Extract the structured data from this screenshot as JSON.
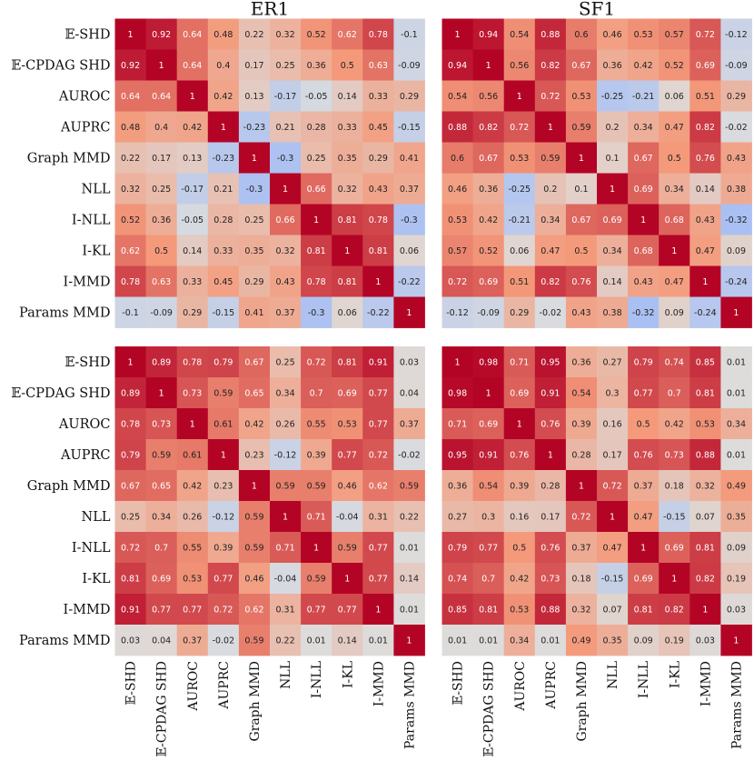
{
  "chart_data": {
    "type": "heatmap",
    "colormap": "coolwarm",
    "vmin": -1,
    "vmax": 1,
    "column_titles": [
      "ER1",
      "SF1"
    ],
    "labels": [
      "𝔼-SHD",
      "𝔼-CPDAG SHD",
      "AUROC",
      "AUPRC",
      "Graph MMD",
      "NLL",
      "I-NLL",
      "I-KL",
      "I-MMD",
      "Params MMD"
    ],
    "panels": [
      {
        "title": "ER1",
        "row": 0,
        "col": 0,
        "matrix": [
          [
            "1",
            "0.92",
            "0.64",
            "0.48",
            "0.22",
            "0.32",
            "0.52",
            "0.62",
            "0.78",
            "-0.1"
          ],
          [
            "0.92",
            "1",
            "0.64",
            "0.4",
            "0.17",
            "0.25",
            "0.36",
            "0.5",
            "0.63",
            "-0.09"
          ],
          [
            "0.64",
            "0.64",
            "1",
            "0.42",
            "0.13",
            "-0.17",
            "-0.05",
            "0.14",
            "0.33",
            "0.29"
          ],
          [
            "0.48",
            "0.4",
            "0.42",
            "1",
            "-0.23",
            "0.21",
            "0.28",
            "0.33",
            "0.45",
            "-0.15"
          ],
          [
            "0.22",
            "0.17",
            "0.13",
            "-0.23",
            "1",
            "-0.3",
            "0.25",
            "0.35",
            "0.29",
            "0.41"
          ],
          [
            "0.32",
            "0.25",
            "-0.17",
            "0.21",
            "-0.3",
            "1",
            "0.66",
            "0.32",
            "0.43",
            "0.37"
          ],
          [
            "0.52",
            "0.36",
            "-0.05",
            "0.28",
            "0.25",
            "0.66",
            "1",
            "0.81",
            "0.78",
            "-0.3"
          ],
          [
            "0.62",
            "0.5",
            "0.14",
            "0.33",
            "0.35",
            "0.32",
            "0.81",
            "1",
            "0.81",
            "0.06"
          ],
          [
            "0.78",
            "0.63",
            "0.33",
            "0.45",
            "0.29",
            "0.43",
            "0.78",
            "0.81",
            "1",
            "-0.22"
          ],
          [
            "-0.1",
            "-0.09",
            "0.29",
            "-0.15",
            "0.41",
            "0.37",
            "-0.3",
            "0.06",
            "-0.22",
            "1"
          ]
        ]
      },
      {
        "title": "SF1",
        "row": 0,
        "col": 1,
        "matrix": [
          [
            "1",
            "0.94",
            "0.54",
            "0.88",
            "0.6",
            "0.46",
            "0.53",
            "0.57",
            "0.72",
            "-0.12"
          ],
          [
            "0.94",
            "1",
            "0.56",
            "0.82",
            "0.67",
            "0.36",
            "0.42",
            "0.52",
            "0.69",
            "-0.09"
          ],
          [
            "0.54",
            "0.56",
            "1",
            "0.72",
            "0.53",
            "-0.25",
            "-0.21",
            "0.06",
            "0.51",
            "0.29"
          ],
          [
            "0.88",
            "0.82",
            "0.72",
            "1",
            "0.59",
            "0.2",
            "0.34",
            "0.47",
            "0.82",
            "-0.02"
          ],
          [
            "0.6",
            "0.67",
            "0.53",
            "0.59",
            "1",
            "0.1",
            "0.67",
            "0.5",
            "0.76",
            "0.43"
          ],
          [
            "0.46",
            "0.36",
            "-0.25",
            "0.2",
            "0.1",
            "1",
            "0.69",
            "0.34",
            "0.14",
            "0.38"
          ],
          [
            "0.53",
            "0.42",
            "-0.21",
            "0.34",
            "0.67",
            "0.69",
            "1",
            "0.68",
            "0.43",
            "-0.32"
          ],
          [
            "0.57",
            "0.52",
            "0.06",
            "0.47",
            "0.5",
            "0.34",
            "0.68",
            "1",
            "0.47",
            "0.09"
          ],
          [
            "0.72",
            "0.69",
            "0.51",
            "0.82",
            "0.76",
            "0.14",
            "0.43",
            "0.47",
            "1",
            "-0.24"
          ],
          [
            "-0.12",
            "-0.09",
            "0.29",
            "-0.02",
            "0.43",
            "0.38",
            "-0.32",
            "0.09",
            "-0.24",
            "1"
          ]
        ]
      },
      {
        "title": "",
        "row": 1,
        "col": 0,
        "matrix": [
          [
            "1",
            "0.89",
            "0.78",
            "0.79",
            "0.67",
            "0.25",
            "0.72",
            "0.81",
            "0.91",
            "0.03"
          ],
          [
            "0.89",
            "1",
            "0.73",
            "0.59",
            "0.65",
            "0.34",
            "0.7",
            "0.69",
            "0.77",
            "0.04"
          ],
          [
            "0.78",
            "0.73",
            "1",
            "0.61",
            "0.42",
            "0.26",
            "0.55",
            "0.53",
            "0.77",
            "0.37"
          ],
          [
            "0.79",
            "0.59",
            "0.61",
            "1",
            "0.23",
            "-0.12",
            "0.39",
            "0.77",
            "0.72",
            "-0.02"
          ],
          [
            "0.67",
            "0.65",
            "0.42",
            "0.23",
            "1",
            "0.59",
            "0.59",
            "0.46",
            "0.62",
            "0.59"
          ],
          [
            "0.25",
            "0.34",
            "0.26",
            "-0.12",
            "0.59",
            "1",
            "0.71",
            "-0.04",
            "0.31",
            "0.22"
          ],
          [
            "0.72",
            "0.7",
            "0.55",
            "0.39",
            "0.59",
            "0.71",
            "1",
            "0.59",
            "0.77",
            "0.01"
          ],
          [
            "0.81",
            "0.69",
            "0.53",
            "0.77",
            "0.46",
            "-0.04",
            "0.59",
            "1",
            "0.77",
            "0.14"
          ],
          [
            "0.91",
            "0.77",
            "0.77",
            "0.72",
            "0.62",
            "0.31",
            "0.77",
            "0.77",
            "1",
            "0.01"
          ],
          [
            "0.03",
            "0.04",
            "0.37",
            "-0.02",
            "0.59",
            "0.22",
            "0.01",
            "0.14",
            "0.01",
            "1"
          ]
        ]
      },
      {
        "title": "",
        "row": 1,
        "col": 1,
        "matrix": [
          [
            "1",
            "0.98",
            "0.71",
            "0.95",
            "0.36",
            "0.27",
            "0.79",
            "0.74",
            "0.85",
            "0.01"
          ],
          [
            "0.98",
            "1",
            "0.69",
            "0.91",
            "0.54",
            "0.3",
            "0.77",
            "0.7",
            "0.81",
            "0.01"
          ],
          [
            "0.71",
            "0.69",
            "1",
            "0.76",
            "0.39",
            "0.16",
            "0.5",
            "0.42",
            "0.53",
            "0.34"
          ],
          [
            "0.95",
            "0.91",
            "0.76",
            "1",
            "0.28",
            "0.17",
            "0.76",
            "0.73",
            "0.88",
            "0.01"
          ],
          [
            "0.36",
            "0.54",
            "0.39",
            "0.28",
            "1",
            "0.72",
            "0.37",
            "0.18",
            "0.32",
            "0.49"
          ],
          [
            "0.27",
            "0.3",
            "0.16",
            "0.17",
            "0.72",
            "1",
            "0.47",
            "-0.15",
            "0.07",
            "0.35"
          ],
          [
            "0.79",
            "0.77",
            "0.5",
            "0.76",
            "0.37",
            "0.47",
            "1",
            "0.69",
            "0.81",
            "0.09"
          ],
          [
            "0.74",
            "0.7",
            "0.42",
            "0.73",
            "0.18",
            "-0.15",
            "0.69",
            "1",
            "0.82",
            "0.19"
          ],
          [
            "0.85",
            "0.81",
            "0.53",
            "0.88",
            "0.32",
            "0.07",
            "0.81",
            "0.82",
            "1",
            "0.03"
          ],
          [
            "0.01",
            "0.01",
            "0.34",
            "0.01",
            "0.49",
            "0.35",
            "0.09",
            "0.19",
            "0.03",
            "1"
          ]
        ]
      }
    ]
  }
}
